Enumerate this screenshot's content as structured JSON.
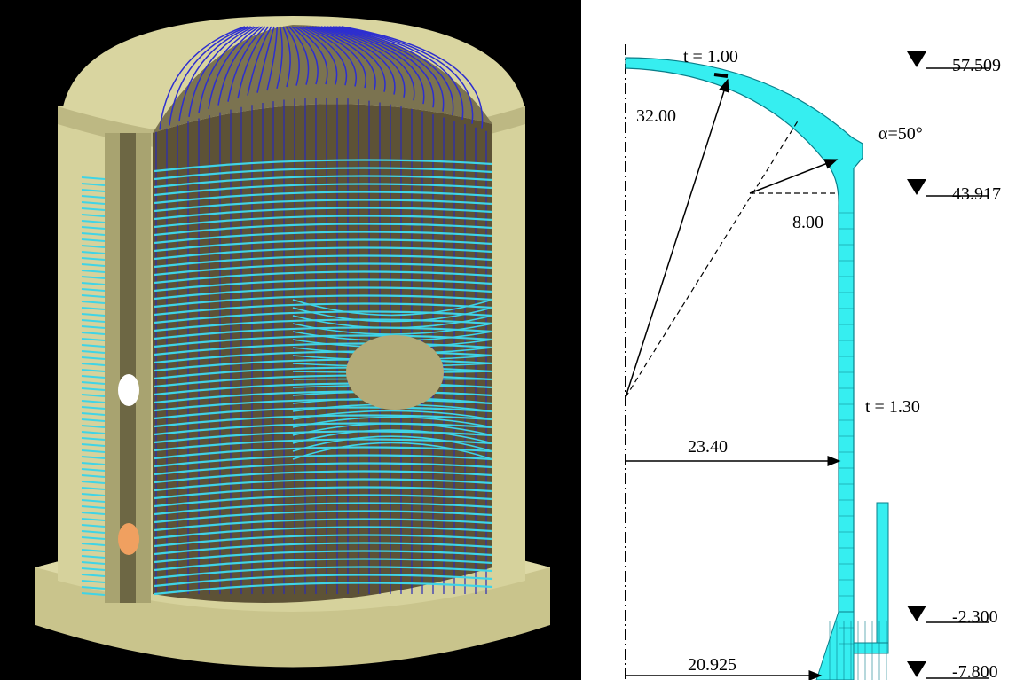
{
  "section": {
    "labels": {
      "dome_thickness": "t = 1.00",
      "dome_radius": "32.00",
      "angle": "α=50°",
      "knuckle_radius": "8.00",
      "wall_thickness": "t = 1.30",
      "inner_radius": "23.40",
      "base_radius": "20.925"
    },
    "elevations": [
      "57.509",
      "43.917",
      "-2.300",
      "-7.800"
    ]
  }
}
